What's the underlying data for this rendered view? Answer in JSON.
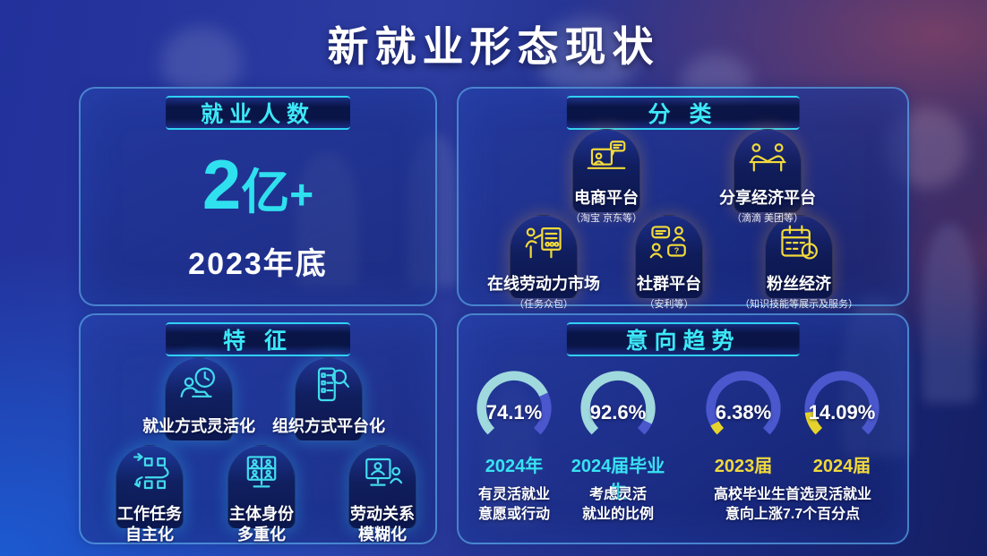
{
  "title": "新就业形态现状",
  "colors": {
    "accent_cyan": "#3ce8f8",
    "big_number_cyan": "#2fe0ee",
    "icon_yellow": "#f2da3a",
    "icon_cyan": "#41dced",
    "gauge_teal": "#9fd9de",
    "gauge_indigo": "#4a57cd",
    "gauge_yellow": "#e6d42c",
    "label_yellow": "#f0d83c",
    "panel_border": "#60b0f0"
  },
  "panels": {
    "employment": {
      "header": "就业人数",
      "number": "2",
      "unit": "亿",
      "plus": "+",
      "subtitle": "2023年底"
    },
    "classification": {
      "header": "分 类",
      "items": [
        {
          "icon": "ecommerce-platform-icon",
          "label": "电商平台",
          "note": "（淘宝 京东等）"
        },
        {
          "icon": "sharing-economy-icon",
          "label": "分享经济平台",
          "note": "（滴滴 美团等）"
        },
        {
          "icon": "online-labor-market-icon",
          "label": "在线劳动力市场",
          "note": "（任务众包）"
        },
        {
          "icon": "community-platform-icon",
          "label": "社群平台",
          "note": "（安利等）"
        },
        {
          "icon": "fan-economy-icon",
          "label": "粉丝经济",
          "note": "（知识技能等展示及服务）"
        }
      ]
    },
    "features": {
      "header": "特 征",
      "items": [
        {
          "icon": "flexible-employment-icon",
          "label": "就业方式灵活化"
        },
        {
          "icon": "platform-organization-icon",
          "label": "组织方式平台化"
        },
        {
          "icon": "task-autonomy-icon",
          "label": "工作任务\n自主化"
        },
        {
          "icon": "multiple-identity-icon",
          "label": "主体身份\n多重化"
        },
        {
          "icon": "labor-relation-icon",
          "label": "劳动关系\n模糊化"
        }
      ]
    },
    "trends": {
      "header": "意向趋势",
      "rest_color": "#4a57cd",
      "gauges": [
        {
          "value": 74.1,
          "display": "74.1%",
          "label": "2024年",
          "fill": "#9fd9de",
          "label_color": "#38e2f2"
        },
        {
          "value": 92.6,
          "display": "92.6%",
          "label": "2024届毕业生",
          "fill": "#9fd9de",
          "label_color": "#38e2f2"
        },
        {
          "value": 6.38,
          "display": "6.38%",
          "label": "2023届",
          "fill": "#e6d42c",
          "label_color": "#f0d83c"
        },
        {
          "value": 14.09,
          "display": "14.09%",
          "label": "2024届",
          "fill": "#e6d42c",
          "label_color": "#f0d83c"
        }
      ],
      "descriptions": [
        "有灵活就业\n意愿或行动",
        "考虑灵活\n就业的比例",
        "高校毕业生首选灵活就业\n意向上涨7.7个百分点"
      ]
    }
  },
  "chart_data": {
    "type": "gauge",
    "title": "意向趋势",
    "gauges": [
      {
        "label": "2024年",
        "value": 74.1,
        "unit": "%",
        "description": "有灵活就业意愿或行动"
      },
      {
        "label": "2024届毕业生",
        "value": 92.6,
        "unit": "%",
        "description": "考虑灵活就业的比例"
      },
      {
        "label": "2023届",
        "value": 6.38,
        "unit": "%",
        "description": "高校毕业生首选灵活就业意向上涨7.7个百分点"
      },
      {
        "label": "2024届",
        "value": 14.09,
        "unit": "%",
        "description": "高校毕业生首选灵活就业意向上涨7.7个百分点"
      }
    ],
    "other_stats": {
      "employment_count": "2亿+",
      "as_of": "2023年底"
    },
    "layout": {
      "arc_sweep_deg": 270,
      "gap_position": "bottom"
    }
  }
}
